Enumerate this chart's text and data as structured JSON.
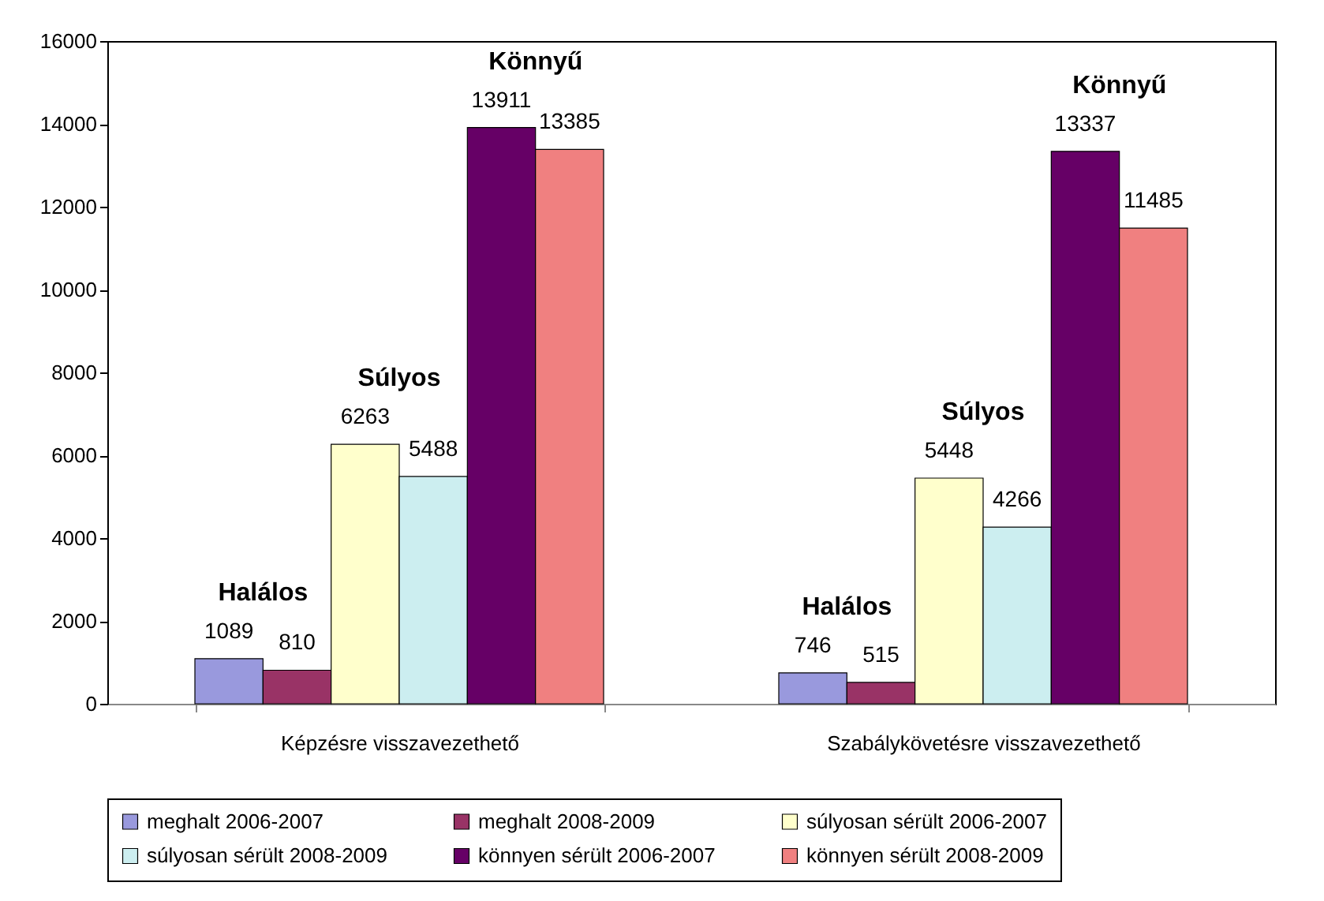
{
  "chart_data": {
    "type": "bar",
    "categories": [
      "Képzésre visszavezethető",
      "Szabálykövetésre visszavezethető"
    ],
    "series": [
      {
        "name": "meghalt 2006-2007",
        "color": "#9999dd",
        "values": [
          1089,
          746
        ]
      },
      {
        "name": "meghalt 2008-2009",
        "color": "#993366",
        "values": [
          810,
          515
        ]
      },
      {
        "name": "súlyosan sérült 2006-2007",
        "color": "#ffffcc",
        "values": [
          6263,
          5448
        ]
      },
      {
        "name": "súlyosan sérült 2008-2009",
        "color": "#cceef0",
        "values": [
          5488,
          4266
        ]
      },
      {
        "name": "könnyen sérült 2006-2007",
        "color": "#660066",
        "values": [
          13911,
          13337
        ]
      },
      {
        "name": "könnyen sérült 2008-2009",
        "color": "#f08080",
        "values": [
          13385,
          11485
        ]
      }
    ],
    "ylim": [
      0,
      16000
    ],
    "yticks": [
      0,
      2000,
      4000,
      6000,
      8000,
      10000,
      12000,
      14000,
      16000
    ],
    "grid": false,
    "legend": "bottom",
    "data_labels": true,
    "annotations": [
      "Halálos",
      "Súlyos",
      "Könnyű",
      "Halálos",
      "Súlyos",
      "Könnyű"
    ]
  }
}
